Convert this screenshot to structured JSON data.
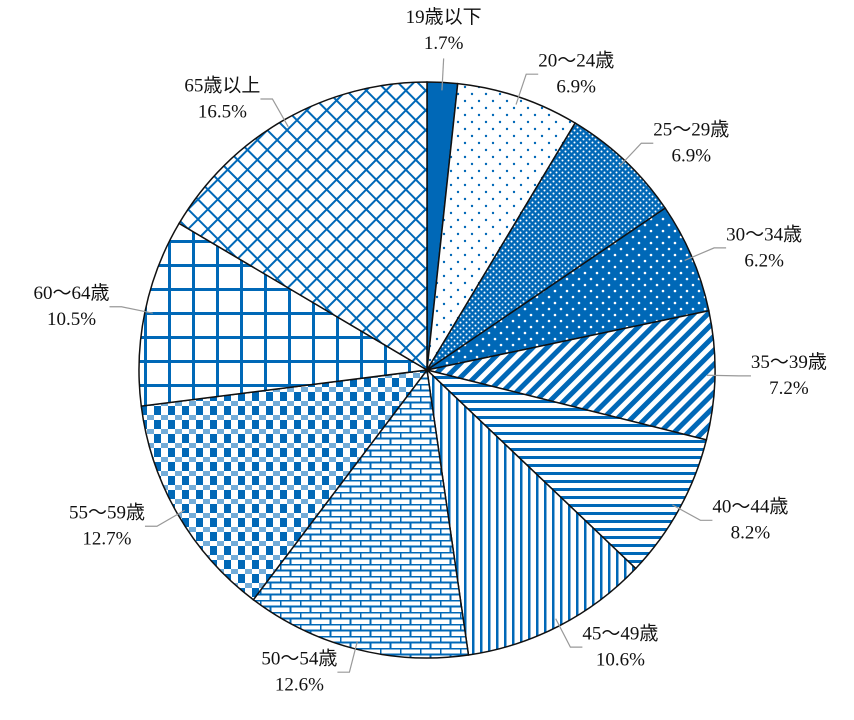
{
  "chart_data": {
    "type": "pie",
    "categories": [
      "19歳以下",
      "20〜24歳",
      "25〜29歳",
      "30〜34歳",
      "35〜39歳",
      "40〜44歳",
      "45〜49歳",
      "50〜54歳",
      "55〜59歳",
      "60〜64歳",
      "65歳以上"
    ],
    "values": [
      1.7,
      6.9,
      6.9,
      6.2,
      7.2,
      8.2,
      10.6,
      12.6,
      12.7,
      10.5,
      16.5
    ],
    "value_labels": [
      "1.7%",
      "6.9%",
      "6.9%",
      "6.2%",
      "7.2%",
      "8.2%",
      "10.6%",
      "12.6%",
      "12.7%",
      "10.5%",
      "16.5%"
    ],
    "color": "#0068b7"
  }
}
